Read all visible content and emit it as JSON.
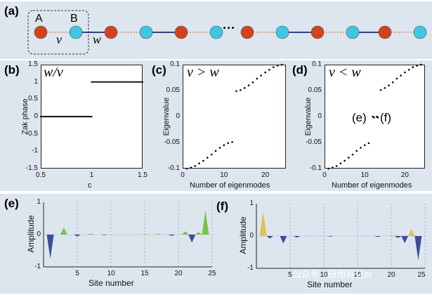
{
  "panel_a": {
    "label": "(a)",
    "site_a": "A",
    "site_b": "B",
    "hop_intra": "v",
    "hop_inter": "w",
    "ellipsis": "···",
    "colors": {
      "site_a": "#d2431d",
      "site_b": "#3ec7e3",
      "bond_intra": "#d97a4a",
      "bond_inter": "#1c2a6b"
    }
  },
  "panel_b": {
    "label": "(b)",
    "annotation": "w/v",
    "ylabel": "Zak phase",
    "xlabel": "c",
    "x_ticks": [
      "0.5",
      "1",
      "1.5"
    ],
    "y_ticks": [
      "1.5",
      "1",
      "0.5",
      "0",
      "-0.5",
      "-1",
      "-1.5"
    ]
  },
  "panel_c": {
    "label": "(c)",
    "annotation": "v > w",
    "ylabel": "Eigenvalue",
    "xlabel": "Number of eigenmodes",
    "x_ticks": [
      "0",
      "10",
      "20"
    ],
    "y_ticks": [
      "0.1",
      "0.05",
      "0",
      "-0.05",
      "-0.1"
    ]
  },
  "panel_d": {
    "label": "(d)",
    "annotation": "v < w",
    "ylabel": "Eigenvalue",
    "xlabel": "Number of eigenmodes",
    "x_ticks": [
      "0",
      "10",
      "20"
    ],
    "y_ticks": [
      "0.1",
      "0.05",
      "0",
      "-0.05",
      "-0.1"
    ],
    "edge_labels": {
      "left": "(e)",
      "dots": "··",
      "right": "(f)"
    }
  },
  "panel_e": {
    "label": "(e)",
    "ylabel": "Amplitude",
    "xlabel": "Site number",
    "x_ticks": [
      "5",
      "10",
      "15",
      "20",
      "25"
    ],
    "y_ticks": [
      "1",
      "0",
      "-1"
    ]
  },
  "panel_f": {
    "label": "(f)",
    "ylabel": "Amplitude",
    "xlabel": "Site number",
    "x_ticks": [
      "5",
      "10",
      "15",
      "20",
      "25"
    ],
    "y_ticks": [
      "1",
      "0",
      "-1"
    ]
  },
  "watermark": "公众号 · 研而有信er",
  "chart_data": [
    {
      "type": "scatter",
      "panel": "b",
      "xlabel": "c",
      "ylabel": "Zak phase",
      "xlim": [
        0.5,
        1.5
      ],
      "ylim": [
        -1.5,
        1.5
      ],
      "series": [
        {
          "x_range": [
            0.5,
            1.0
          ],
          "y": 0,
          "points": 40
        },
        {
          "x_range": [
            1.0,
            1.5
          ],
          "y": 1,
          "points": 40
        }
      ]
    },
    {
      "type": "scatter",
      "panel": "c",
      "xlabel": "Number of eigenmodes",
      "ylabel": "Eigenvalue",
      "xlim": [
        0,
        25
      ],
      "ylim": [
        -0.1,
        0.1
      ],
      "x": [
        1,
        2,
        3,
        4,
        5,
        6,
        7,
        8,
        9,
        10,
        11,
        12,
        13,
        14,
        15,
        16,
        17,
        18,
        19,
        20,
        21,
        22,
        23,
        24
      ],
      "y": [
        -0.1,
        -0.098,
        -0.095,
        -0.09,
        -0.085,
        -0.079,
        -0.073,
        -0.066,
        -0.06,
        -0.055,
        -0.051,
        -0.049,
        0.049,
        0.051,
        0.055,
        0.06,
        0.066,
        0.073,
        0.079,
        0.085,
        0.09,
        0.095,
        0.098,
        0.1
      ]
    },
    {
      "type": "scatter",
      "panel": "d",
      "xlabel": "Number of eigenmodes",
      "ylabel": "Eigenvalue",
      "xlim": [
        0,
        25
      ],
      "ylim": [
        -0.1,
        0.1
      ],
      "x": [
        1,
        2,
        3,
        4,
        5,
        6,
        7,
        8,
        9,
        10,
        11,
        12,
        13,
        14,
        15,
        16,
        17,
        18,
        19,
        20,
        21,
        22,
        23,
        24
      ],
      "y": [
        -0.1,
        -0.098,
        -0.095,
        -0.09,
        -0.085,
        -0.079,
        -0.073,
        -0.066,
        -0.06,
        -0.055,
        -0.051,
        0,
        0,
        0.051,
        0.055,
        0.06,
        0.066,
        0.073,
        0.079,
        0.085,
        0.09,
        0.095,
        0.098,
        0.1
      ]
    },
    {
      "type": "bar",
      "panel": "e",
      "xlabel": "Site number",
      "ylabel": "Amplitude",
      "xlim": [
        0,
        25
      ],
      "ylim": [
        -1,
        1
      ],
      "x": [
        1,
        3,
        5,
        7,
        9,
        15,
        17,
        19,
        21,
        22,
        23,
        24
      ],
      "values": [
        -0.75,
        0.22,
        -0.06,
        0.03,
        -0.02,
        0.02,
        0.03,
        -0.04,
        0.1,
        -0.25,
        0.08,
        0.75
      ]
    },
    {
      "type": "bar",
      "panel": "f",
      "xlabel": "Site number",
      "ylabel": "Amplitude",
      "xlim": [
        0,
        25
      ],
      "ylim": [
        -1,
        1
      ],
      "x": [
        1,
        2,
        4,
        6,
        8,
        11,
        16,
        18,
        20,
        21,
        22,
        23,
        24
      ],
      "values": [
        0.75,
        -0.08,
        -0.23,
        -0.05,
        0.02,
        -0.02,
        0.02,
        -0.03,
        0.04,
        -0.06,
        -0.22,
        0.22,
        -0.75
      ]
    }
  ]
}
